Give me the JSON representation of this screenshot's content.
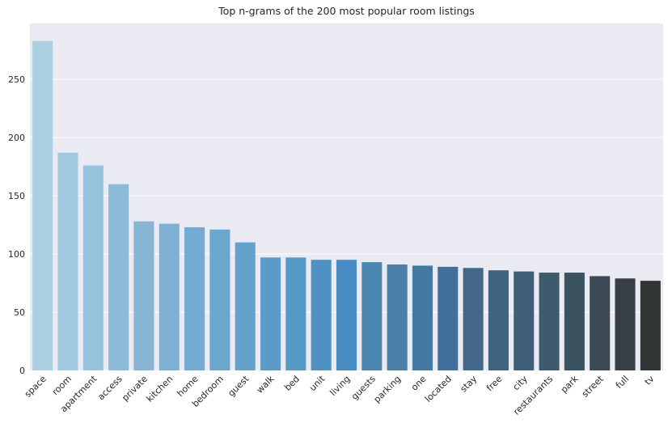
{
  "chart_data": {
    "type": "bar",
    "title": "Top n-grams of the 200 most popular room listings",
    "xlabel": "",
    "ylabel": "",
    "ylim": [
      0,
      298
    ],
    "yticks": [
      0,
      50,
      100,
      150,
      200,
      250
    ],
    "grid": true,
    "categories": [
      "space",
      "room",
      "apartment",
      "access",
      "private",
      "kitchen",
      "home",
      "bedroom",
      "guest",
      "walk",
      "bed",
      "unit",
      "living",
      "guests",
      "parking",
      "one",
      "located",
      "stay",
      "free",
      "city",
      "restaurants",
      "park",
      "street",
      "full",
      "tv"
    ],
    "values": [
      283,
      187,
      176,
      160,
      128,
      126,
      123,
      121,
      110,
      97,
      97,
      95,
      95,
      93,
      91,
      90,
      89,
      88,
      86,
      85,
      84,
      84,
      81,
      79,
      77
    ],
    "colors": [
      "#acd0e1",
      "#a1c9df",
      "#96c3dd",
      "#8dbbd7",
      "#87b6d5",
      "#7eb0d4",
      "#75aad3",
      "#6ba6cf",
      "#64a2cd",
      "#5a9bc9",
      "#5599c7",
      "#4f91c2",
      "#498cc3",
      "#4b86b3",
      "#4a7faa",
      "#4678a4",
      "#42709c",
      "#43688a",
      "#406480",
      "#3e5f77",
      "#3e5a6d",
      "#3b5261",
      "#3c4a55",
      "#383e47",
      "#323637"
    ],
    "background": "#eaeaf2",
    "gridColor": "#ffffff"
  }
}
